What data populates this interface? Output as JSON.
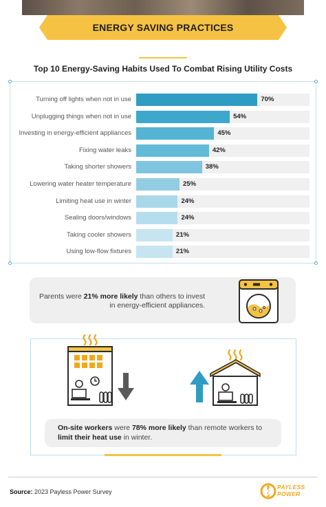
{
  "header": {
    "title": "ENERGY SAVING PRACTICES"
  },
  "chart_data": {
    "type": "bar",
    "orientation": "horizontal",
    "title": "Top 10 Energy-Saving Habits Used To Combat Rising Utility Costs",
    "categories": [
      "Turning off lights when not in use",
      "Unplugging things when not in use",
      "Investing in energy-efficient appliances",
      "Fixing water leaks",
      "Taking shorter showers",
      "Lowering water heater temperature",
      "Limiting heat use in winter",
      "Sealing doors/windows",
      "Taking cooler showers",
      "Using low-flow fixtures"
    ],
    "values": [
      70,
      54,
      45,
      42,
      38,
      25,
      24,
      24,
      21,
      21
    ],
    "value_labels": [
      "70%",
      "54%",
      "45%",
      "42%",
      "38%",
      "25%",
      "24%",
      "24%",
      "21%",
      "21%"
    ],
    "xlim": [
      0,
      100
    ],
    "colors": [
      "#2f9cc4",
      "#3da7cc",
      "#55b3d3",
      "#63bad7",
      "#7fc5df",
      "#93cde3",
      "#a9d8ea",
      "#b6dded",
      "#c6e5f1",
      "#c6e5f1"
    ],
    "grid": false
  },
  "callout1": {
    "text_1": "Parents were ",
    "highlight": "21% more likely",
    "text_2": " than others to invest in energy-efficient appliances.",
    "icon": "washing-machine-icon"
  },
  "callout2": {
    "highlight_1": "On-site workers",
    "text_1": " were ",
    "highlight_2": "78% more likely",
    "text_2": " than remote workers to ",
    "highlight_3": "limit their heat use",
    "text_3": " in winter.",
    "icons": [
      "office-building-icon",
      "down-arrow-icon",
      "up-arrow-icon",
      "home-icon"
    ]
  },
  "footer": {
    "source_label": "Source:",
    "source_text": " 2023 Payless Power Survey",
    "logo_line1": "PAYLESS",
    "logo_line2": "POWER"
  },
  "colors": {
    "accent": "#f6c243",
    "bar_dark": "#2f9cc4",
    "border": "#bfe0ec",
    "orange": "#f0a81e"
  }
}
